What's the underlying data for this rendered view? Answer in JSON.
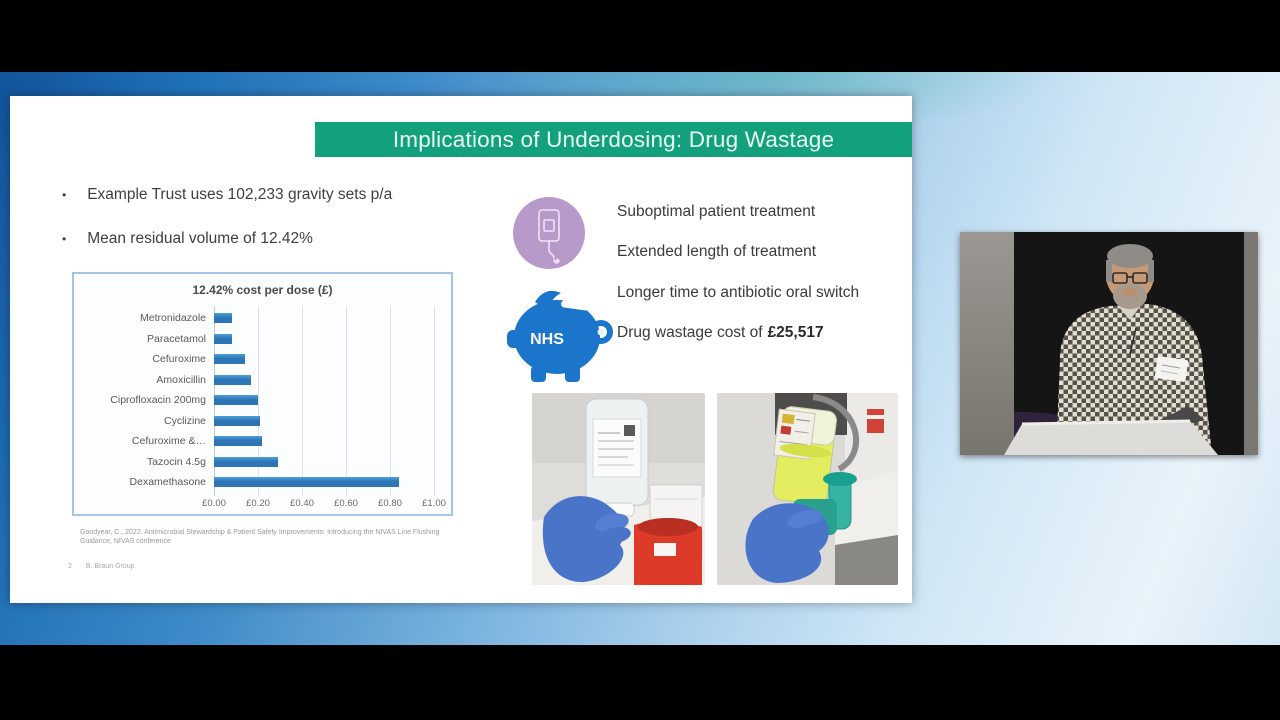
{
  "slide": {
    "title": "Implications of Underdosing: Drug Wastage",
    "bullets": [
      "Example Trust uses 102,233 gravity sets p/a",
      "Mean residual volume of 12.42%"
    ],
    "impacts": [
      "Suboptimal patient treatment",
      "Extended length of treatment",
      "Longer time to antibiotic oral switch"
    ],
    "wastage_prefix": "Drug wastage cost of",
    "wastage_amount": "£25,517",
    "piggy_label": "NHS",
    "citation_line1": "Goodyear, C., 2022. Antimicrobial Stewardship & Patient Safety Improvements: Introducing the NIVAS Line Flushing",
    "citation_line2": "Guidance, NIVAS conference",
    "page_number": "2",
    "company": "B. Braun Group"
  },
  "chart_data": {
    "type": "bar",
    "orientation": "horizontal",
    "title": "12.42% cost per dose (£)",
    "categories": [
      "Metronidazole",
      "Paracetamol",
      "Cefuroxime",
      "Amoxicillin",
      "Ciprofloxacin 200mg",
      "Cyclizine",
      "Cefuroxime &…",
      "Tazocin 4.5g",
      "Dexamethasone"
    ],
    "values": [
      0.08,
      0.08,
      0.14,
      0.17,
      0.2,
      0.21,
      0.22,
      0.29,
      0.84
    ],
    "x_ticks": [
      "£0.00",
      "£0.20",
      "£0.40",
      "£0.60",
      "£0.80",
      "£1.00"
    ],
    "xlim": [
      0,
      1.0
    ],
    "xlabel": "",
    "ylabel": "",
    "grid": true,
    "legend": false,
    "bar_color": "#2e75b6"
  },
  "colors": {
    "title_banner_green": "#12a17c",
    "bar_blue": "#2e75b6",
    "chart_border_blue": "#a3c6e5",
    "piggy_blue": "#1b76cb",
    "iv_icon_purple": "#b79aca",
    "background_blue": "#2e7fc2"
  }
}
